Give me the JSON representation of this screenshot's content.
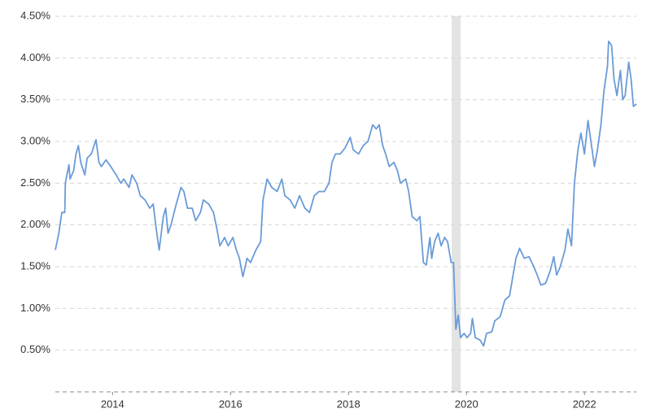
{
  "chart_data": {
    "type": "line",
    "x": [
      2013.03,
      2013.09,
      2013.14,
      2013.19,
      2013.2,
      2013.26,
      2013.28,
      2013.34,
      2013.38,
      2013.42,
      2013.46,
      2013.53,
      2013.57,
      2013.64,
      2013.72,
      2013.77,
      2013.81,
      2013.89,
      2013.97,
      2014.06,
      2014.14,
      2014.19,
      2014.28,
      2014.33,
      2014.41,
      2014.47,
      2014.55,
      2014.63,
      2014.69,
      2014.74,
      2014.79,
      2014.86,
      2014.9,
      2014.94,
      2014.99,
      2015.08,
      2015.16,
      2015.21,
      2015.27,
      2015.35,
      2015.41,
      2015.49,
      2015.54,
      2015.63,
      2015.71,
      2015.77,
      2015.82,
      2015.9,
      2015.96,
      2016.04,
      2016.1,
      2016.15,
      2016.21,
      2016.28,
      2016.34,
      2016.43,
      2016.51,
      2016.55,
      2016.62,
      2016.7,
      2016.79,
      2016.87,
      2016.92,
      2017.01,
      2017.09,
      2017.17,
      2017.26,
      2017.34,
      2017.42,
      2017.5,
      2017.59,
      2017.67,
      2017.72,
      2017.78,
      2017.86,
      2017.94,
      2018.03,
      2018.08,
      2018.17,
      2018.25,
      2018.33,
      2018.41,
      2018.47,
      2018.52,
      2018.58,
      2018.63,
      2018.69,
      2018.77,
      2018.83,
      2018.88,
      2018.97,
      2019.02,
      2019.08,
      2019.16,
      2019.21,
      2019.27,
      2019.32,
      2019.38,
      2019.41,
      2019.46,
      2019.52,
      2019.57,
      2019.63,
      2019.68,
      2019.74,
      2019.78,
      2019.82,
      2019.86,
      2019.9,
      2019.96,
      2020.01,
      2020.07,
      2020.1,
      2020.15,
      2020.23,
      2020.29,
      2020.34,
      2020.43,
      2020.48,
      2020.57,
      2020.65,
      2020.73,
      2020.79,
      2020.84,
      2020.9,
      2020.98,
      2021.06,
      2021.14,
      2021.2,
      2021.26,
      2021.34,
      2021.42,
      2021.48,
      2021.53,
      2021.59,
      2021.67,
      2021.72,
      2021.78,
      2021.83,
      2021.89,
      2021.94,
      2022.0,
      2022.06,
      2022.11,
      2022.17,
      2022.22,
      2022.28,
      2022.33,
      2022.39,
      2022.41,
      2022.46,
      2022.5,
      2022.55,
      2022.61,
      2022.65,
      2022.69,
      2022.75,
      2022.79,
      2022.83,
      2022.88
    ],
    "series": [
      {
        "color": "#6a9bd8",
        "values": [
          1.7,
          1.9,
          2.15,
          2.15,
          2.5,
          2.72,
          2.55,
          2.65,
          2.85,
          2.95,
          2.75,
          2.6,
          2.8,
          2.85,
          3.02,
          2.75,
          2.7,
          2.78,
          2.7,
          2.6,
          2.5,
          2.55,
          2.45,
          2.6,
          2.5,
          2.35,
          2.3,
          2.2,
          2.25,
          1.95,
          1.7,
          2.1,
          2.2,
          1.9,
          2.0,
          2.25,
          2.45,
          2.4,
          2.2,
          2.2,
          2.05,
          2.15,
          2.3,
          2.25,
          2.15,
          1.95,
          1.75,
          1.85,
          1.75,
          1.85,
          1.7,
          1.6,
          1.38,
          1.6,
          1.55,
          1.7,
          1.8,
          2.3,
          2.55,
          2.45,
          2.4,
          2.55,
          2.35,
          2.3,
          2.2,
          2.35,
          2.2,
          2.15,
          2.35,
          2.4,
          2.4,
          2.5,
          2.75,
          2.85,
          2.85,
          2.92,
          3.05,
          2.9,
          2.85,
          2.95,
          3.0,
          3.2,
          3.15,
          3.2,
          2.95,
          2.85,
          2.7,
          2.75,
          2.65,
          2.5,
          2.55,
          2.4,
          2.1,
          2.05,
          2.1,
          1.55,
          1.52,
          1.85,
          1.6,
          1.8,
          1.9,
          1.75,
          1.85,
          1.8,
          1.55,
          1.55,
          0.75,
          0.92,
          0.65,
          0.7,
          0.65,
          0.7,
          0.88,
          0.65,
          0.62,
          0.55,
          0.7,
          0.72,
          0.85,
          0.9,
          1.1,
          1.15,
          1.4,
          1.6,
          1.72,
          1.6,
          1.62,
          1.5,
          1.4,
          1.28,
          1.3,
          1.45,
          1.62,
          1.4,
          1.5,
          1.7,
          1.95,
          1.75,
          2.5,
          2.9,
          3.1,
          2.85,
          3.25,
          3.0,
          2.7,
          2.9,
          3.2,
          3.6,
          3.9,
          4.2,
          4.15,
          3.75,
          3.55,
          3.85,
          3.5,
          3.55,
          3.95,
          3.75,
          3.42,
          3.45
        ]
      }
    ],
    "shaded_ranges": [
      [
        2019.75,
        2019.9
      ]
    ],
    "shade_color": "#e3e3e3",
    "xlim": [
      2013.03,
      2022.88
    ],
    "xticks": [
      2014,
      2016,
      2018,
      2020,
      2022
    ],
    "ylim": [
      0,
      4.5
    ],
    "yticks": [
      {
        "value": 0.5,
        "label": "0.50%"
      },
      {
        "value": 1,
        "label": "1.00%"
      },
      {
        "value": 1.5,
        "label": "1.50%"
      },
      {
        "value": 2,
        "label": "2.00%"
      },
      {
        "value": 2.5,
        "label": "2.50%"
      },
      {
        "value": 3,
        "label": "3.00%"
      },
      {
        "value": 3.5,
        "label": "3.50%"
      },
      {
        "value": 4,
        "label": "4.00%"
      },
      {
        "value": 4.5,
        "label": "4.50%"
      }
    ],
    "grid": true
  }
}
